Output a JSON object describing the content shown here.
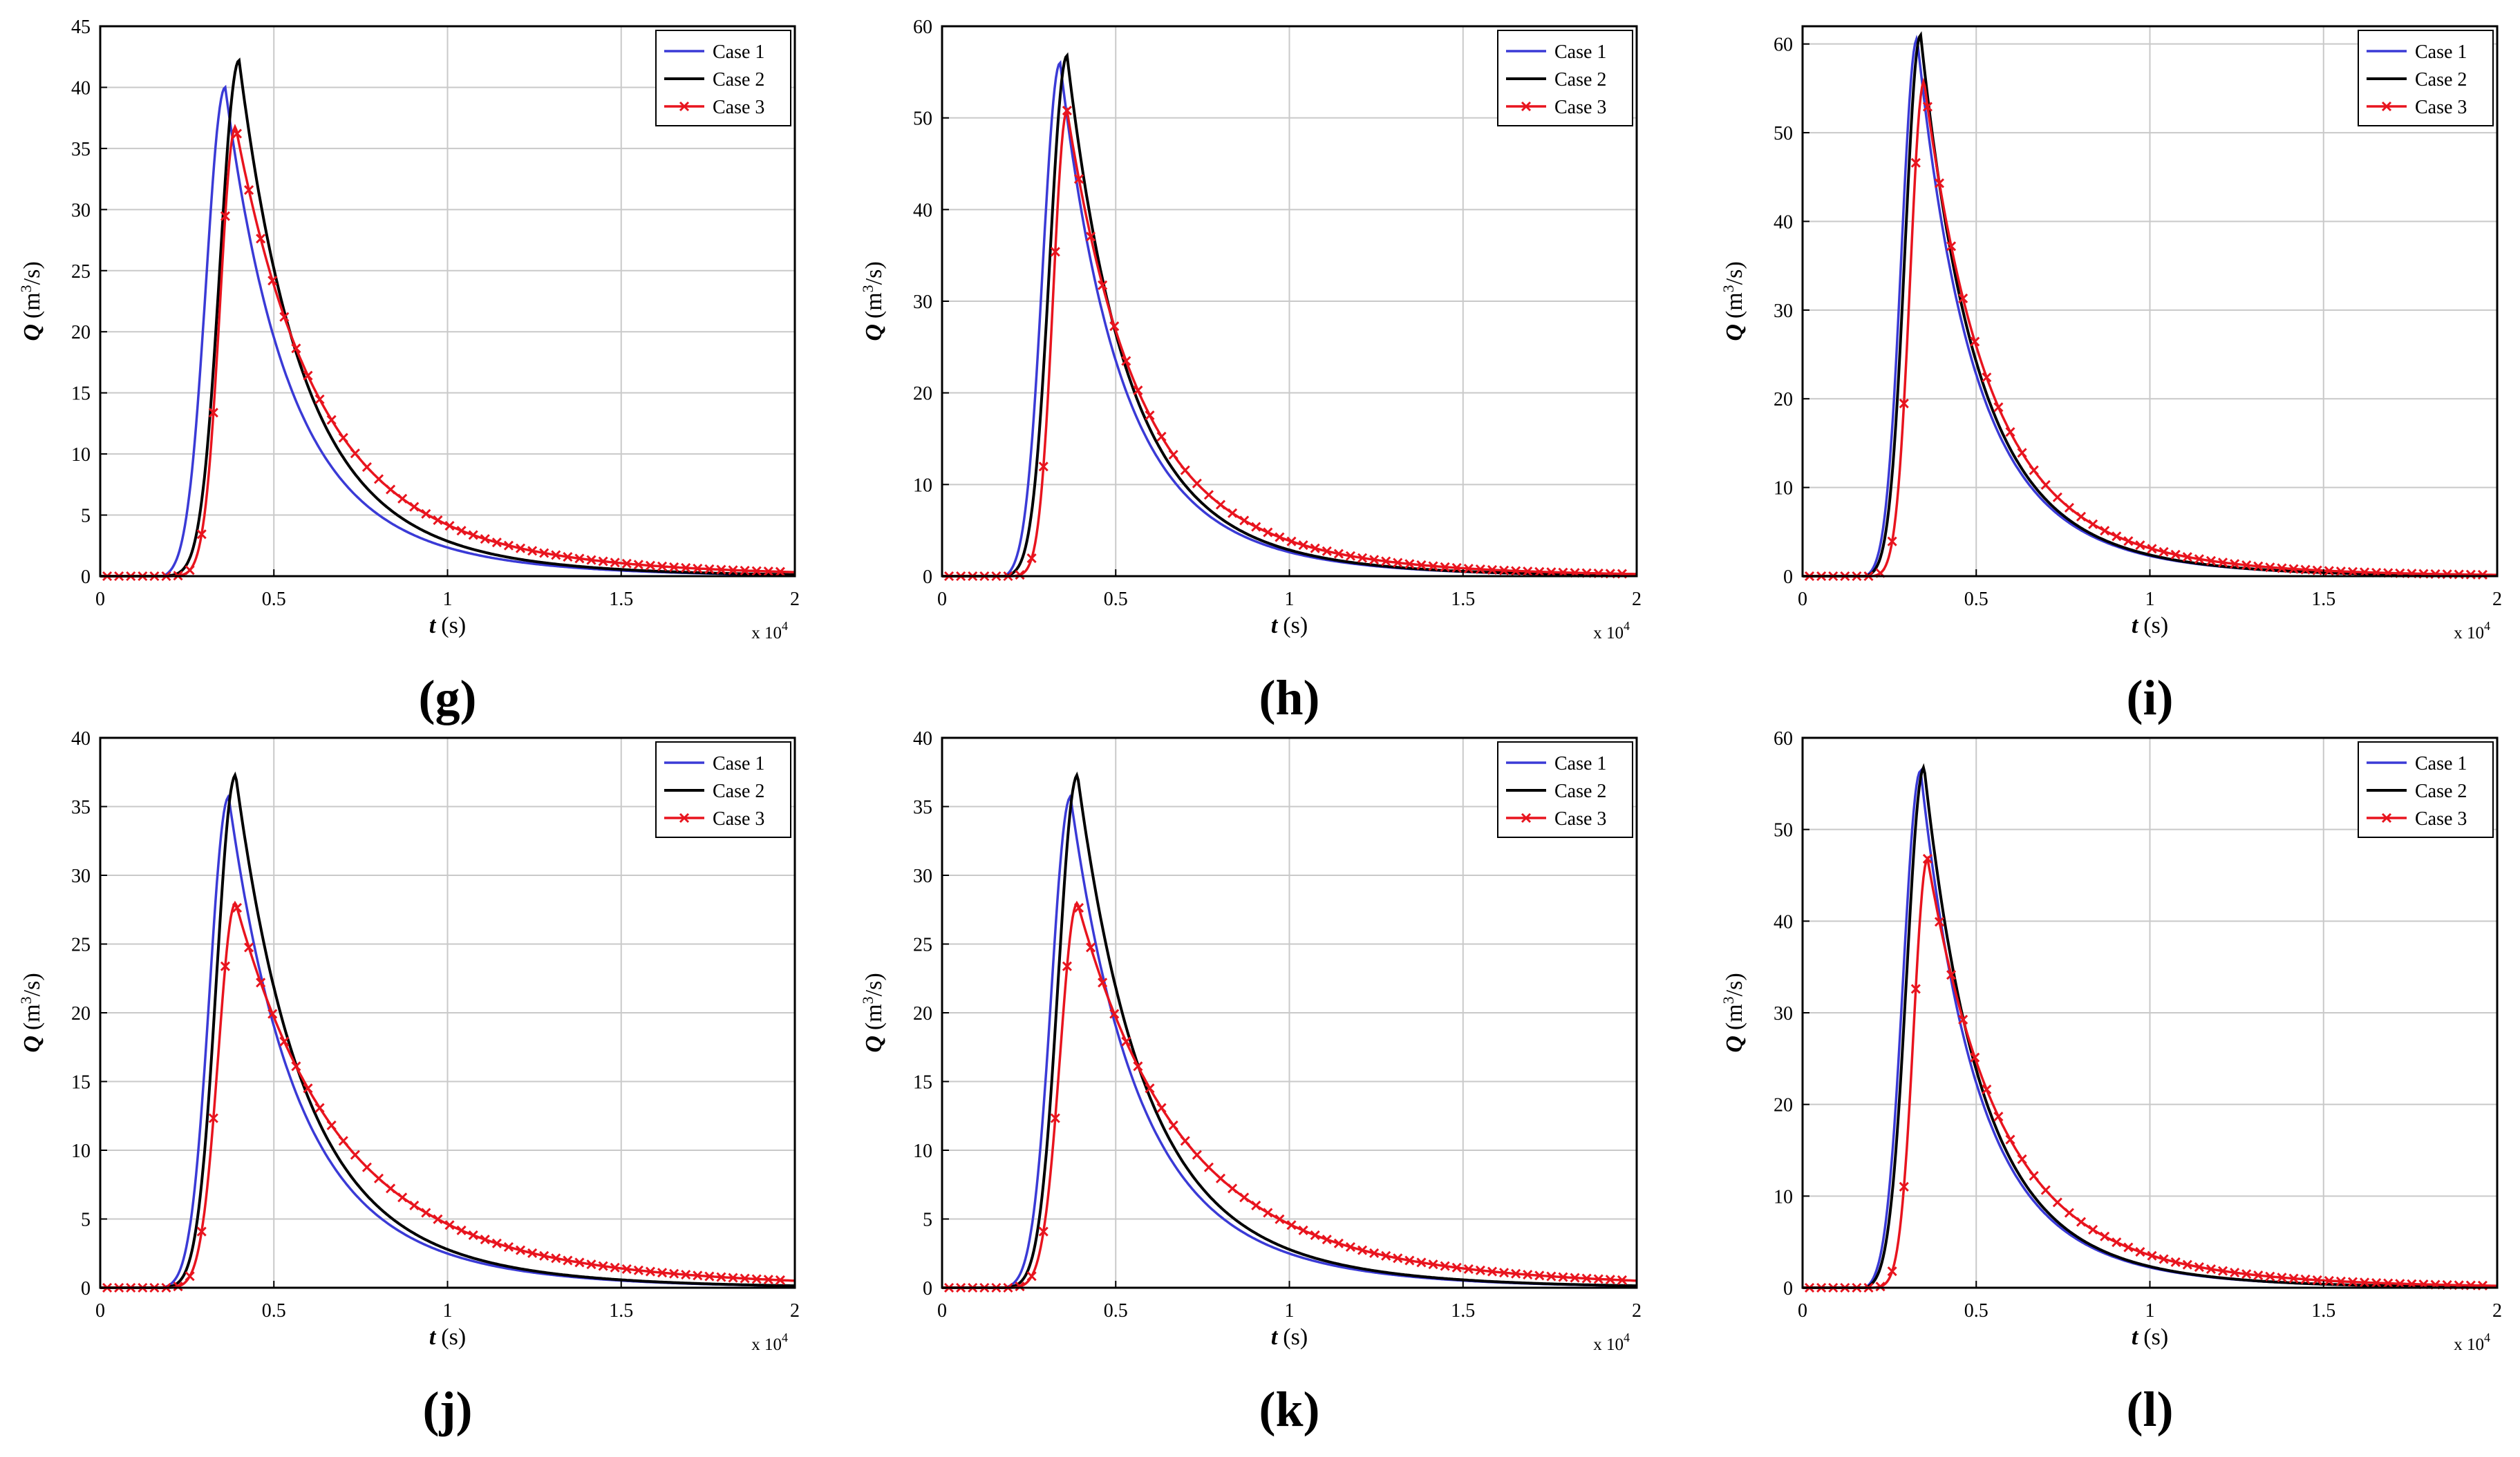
{
  "figure": {
    "subplot_count": 6,
    "legend_location": "top-right"
  },
  "colors": {
    "case1": "#3a3ad6",
    "case2": "#000000",
    "case3": "#e8141e",
    "grid": "#c9c9c9",
    "axes": "#000000"
  },
  "chart_data": [
    {
      "panel": "(g)",
      "type": "line",
      "xlabel_sym": "t",
      "xlabel_unit": "(s)",
      "ylabel_sym": "Q",
      "ylabel_unit_pre": "(m",
      "ylabel_unit_sup": "3",
      "ylabel_unit_post": "/s)",
      "x_multiplier": "x 10",
      "x_multiplier_exp": "4",
      "xlim": [
        0,
        2
      ],
      "ylim": [
        0,
        45
      ],
      "xticks": [
        0,
        0.5,
        1,
        1.5,
        2
      ],
      "xtick_labels": [
        "0",
        "0.5",
        "1",
        "1.5",
        "2"
      ],
      "yticks": [
        0,
        5,
        10,
        15,
        20,
        25,
        30,
        35,
        40,
        45
      ],
      "ytick_labels": [
        "0",
        "5",
        "10",
        "15",
        "20",
        "25",
        "30",
        "35",
        "40",
        "45"
      ],
      "grid": true,
      "series": [
        {
          "name": "Case 1",
          "key": "case1",
          "peak_x": 0.36,
          "peak_y": 40.0,
          "start_x": 0.18,
          "rise_w": 0.055,
          "decay_tau": 0.16
        },
        {
          "name": "Case 2",
          "key": "case2",
          "peak_x": 0.4,
          "peak_y": 42.2,
          "start_x": 0.18,
          "rise_w": 0.055,
          "decay_tau": 0.16
        },
        {
          "name": "Case 3",
          "key": "case3",
          "peak_x": 0.39,
          "peak_y": 36.8,
          "start_x": 0.2,
          "rise_w": 0.045,
          "decay_tau": 0.21,
          "markers": true
        }
      ]
    },
    {
      "panel": "(h)",
      "type": "line",
      "xlabel_sym": "t",
      "xlabel_unit": "(s)",
      "ylabel_sym": "Q",
      "ylabel_unit_pre": "(m",
      "ylabel_unit_sup": "3",
      "ylabel_unit_post": "/s)",
      "x_multiplier": "x 10",
      "x_multiplier_exp": "4",
      "xlim": [
        0,
        2
      ],
      "ylim": [
        0,
        60
      ],
      "xticks": [
        0,
        0.5,
        1,
        1.5,
        2
      ],
      "xtick_labels": [
        "0",
        "0.5",
        "1",
        "1.5",
        "2"
      ],
      "yticks": [
        0,
        10,
        20,
        30,
        40,
        50,
        60
      ],
      "ytick_labels": [
        "0",
        "10",
        "20",
        "30",
        "40",
        "50",
        "60"
      ],
      "grid": true,
      "series": [
        {
          "name": "Case 1",
          "key": "case1",
          "peak_x": 0.34,
          "peak_y": 56.0,
          "start_x": 0.18,
          "rise_w": 0.05,
          "decay_tau": 0.15
        },
        {
          "name": "Case 2",
          "key": "case2",
          "peak_x": 0.36,
          "peak_y": 56.8,
          "start_x": 0.18,
          "rise_w": 0.05,
          "decay_tau": 0.15
        },
        {
          "name": "Case 3",
          "key": "case3",
          "peak_x": 0.36,
          "peak_y": 50.8,
          "start_x": 0.2,
          "rise_w": 0.04,
          "decay_tau": 0.18,
          "markers": true
        }
      ]
    },
    {
      "panel": "(i)",
      "type": "line",
      "xlabel_sym": "t",
      "xlabel_unit": "(s)",
      "ylabel_sym": "Q",
      "ylabel_unit_pre": "(m",
      "ylabel_unit_sup": "3",
      "ylabel_unit_post": "/s)",
      "x_multiplier": "x 10",
      "x_multiplier_exp": "4",
      "xlim": [
        0,
        2
      ],
      "ylim": [
        0,
        62
      ],
      "xticks": [
        0,
        0.5,
        1,
        1.5,
        2
      ],
      "xtick_labels": [
        "0",
        "0.5",
        "1",
        "1.5",
        "2"
      ],
      "yticks": [
        0,
        10,
        20,
        30,
        40,
        50,
        60
      ],
      "ytick_labels": [
        "0",
        "10",
        "20",
        "30",
        "40",
        "50",
        "60"
      ],
      "grid": true,
      "series": [
        {
          "name": "Case 1",
          "key": "case1",
          "peak_x": 0.33,
          "peak_y": 60.6,
          "start_x": 0.18,
          "rise_w": 0.045,
          "decay_tau": 0.14
        },
        {
          "name": "Case 2",
          "key": "case2",
          "peak_x": 0.34,
          "peak_y": 61.0,
          "start_x": 0.18,
          "rise_w": 0.045,
          "decay_tau": 0.14
        },
        {
          "name": "Case 3",
          "key": "case3",
          "peak_x": 0.35,
          "peak_y": 55.8,
          "start_x": 0.2,
          "rise_w": 0.04,
          "decay_tau": 0.16,
          "markers": true
        }
      ]
    },
    {
      "panel": "(j)",
      "type": "line",
      "xlabel_sym": "t",
      "xlabel_unit": "(s)",
      "ylabel_sym": "Q",
      "ylabel_unit_pre": "(m",
      "ylabel_unit_sup": "3",
      "ylabel_unit_post": "/s)",
      "x_multiplier": "x 10",
      "x_multiplier_exp": "4",
      "xlim": [
        0,
        2
      ],
      "ylim": [
        0,
        40
      ],
      "xticks": [
        0,
        0.5,
        1,
        1.5,
        2
      ],
      "xtick_labels": [
        "0",
        "0.5",
        "1",
        "1.5",
        "2"
      ],
      "yticks": [
        0,
        5,
        10,
        15,
        20,
        25,
        30,
        35,
        40
      ],
      "ytick_labels": [
        "0",
        "5",
        "10",
        "15",
        "20",
        "25",
        "30",
        "35",
        "40"
      ],
      "grid": true,
      "series": [
        {
          "name": "Case 1",
          "key": "case1",
          "peak_x": 0.37,
          "peak_y": 35.7,
          "start_x": 0.18,
          "rise_w": 0.055,
          "decay_tau": 0.17
        },
        {
          "name": "Case 2",
          "key": "case2",
          "peak_x": 0.39,
          "peak_y": 37.3,
          "start_x": 0.18,
          "rise_w": 0.055,
          "decay_tau": 0.17
        },
        {
          "name": "Case 3",
          "key": "case3",
          "peak_x": 0.39,
          "peak_y": 28.0,
          "start_x": 0.2,
          "rise_w": 0.05,
          "decay_tau": 0.26,
          "markers": true
        }
      ]
    },
    {
      "panel": "(k)",
      "type": "line",
      "xlabel_sym": "t",
      "xlabel_unit": "(s)",
      "ylabel_sym": "Q",
      "ylabel_unit_pre": "(m",
      "ylabel_unit_sup": "3",
      "ylabel_unit_post": "/s)",
      "x_multiplier": "x 10",
      "x_multiplier_exp": "4",
      "xlim": [
        0,
        2
      ],
      "ylim": [
        0,
        40
      ],
      "xticks": [
        0,
        0.5,
        1,
        1.5,
        2
      ],
      "xtick_labels": [
        "0",
        "0.5",
        "1",
        "1.5",
        "2"
      ],
      "yticks": [
        0,
        5,
        10,
        15,
        20,
        25,
        30,
        35,
        40
      ],
      "ytick_labels": [
        "0",
        "5",
        "10",
        "15",
        "20",
        "25",
        "30",
        "35",
        "40"
      ],
      "grid": true,
      "series": [
        {
          "name": "Case 1",
          "key": "case1",
          "peak_x": 0.37,
          "peak_y": 35.7,
          "start_x": 0.18,
          "rise_w": 0.055,
          "decay_tau": 0.17
        },
        {
          "name": "Case 2",
          "key": "case2",
          "peak_x": 0.39,
          "peak_y": 37.3,
          "start_x": 0.18,
          "rise_w": 0.055,
          "decay_tau": 0.17
        },
        {
          "name": "Case 3",
          "key": "case3",
          "peak_x": 0.39,
          "peak_y": 28.0,
          "start_x": 0.2,
          "rise_w": 0.05,
          "decay_tau": 0.26,
          "markers": true
        }
      ]
    },
    {
      "panel": "(l)",
      "type": "line",
      "xlabel_sym": "t",
      "xlabel_unit": "(s)",
      "ylabel_sym": "Q",
      "ylabel_unit_pre": "(m",
      "ylabel_unit_sup": "3",
      "ylabel_unit_post": "/s)",
      "x_multiplier": "x 10",
      "x_multiplier_exp": "4",
      "xlim": [
        0,
        2
      ],
      "ylim": [
        0,
        60
      ],
      "xticks": [
        0,
        0.5,
        1,
        1.5,
        2
      ],
      "xtick_labels": [
        "0",
        "0.5",
        "1",
        "1.5",
        "2"
      ],
      "yticks": [
        0,
        10,
        20,
        30,
        40,
        50,
        60
      ],
      "ytick_labels": [
        "0",
        "10",
        "20",
        "30",
        "40",
        "50",
        "60"
      ],
      "grid": true,
      "series": [
        {
          "name": "Case 1",
          "key": "case1",
          "peak_x": 0.34,
          "peak_y": 56.4,
          "start_x": 0.18,
          "rise_w": 0.05,
          "decay_tau": 0.14
        },
        {
          "name": "Case 2",
          "key": "case2",
          "peak_x": 0.35,
          "peak_y": 56.8,
          "start_x": 0.18,
          "rise_w": 0.05,
          "decay_tau": 0.14
        },
        {
          "name": "Case 3",
          "key": "case3",
          "peak_x": 0.36,
          "peak_y": 46.8,
          "start_x": 0.2,
          "rise_w": 0.04,
          "decay_tau": 0.18,
          "markers": true
        }
      ]
    }
  ]
}
